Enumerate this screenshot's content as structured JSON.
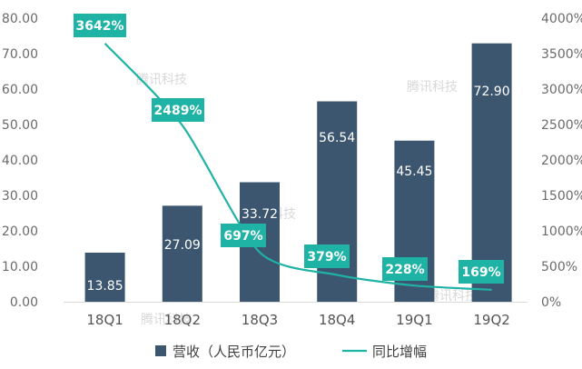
{
  "chart_data": {
    "type": "bar",
    "categories": [
      "18Q1",
      "18Q2",
      "18Q3",
      "18Q4",
      "19Q1",
      "19Q2"
    ],
    "series": [
      {
        "name": "营收（人民币亿元）",
        "type": "bar",
        "axis": "left",
        "values": [
          13.85,
          27.09,
          33.72,
          56.54,
          45.45,
          72.9
        ],
        "labels": [
          "13.85",
          "27.09",
          "33.72",
          "56.54",
          "45.45",
          "72.90"
        ],
        "color": "#3d5670"
      },
      {
        "name": "同比增幅",
        "type": "line",
        "axis": "right",
        "values": [
          3642,
          2489,
          697,
          379,
          228,
          169
        ],
        "labels": [
          "3642%",
          "2489%",
          "697%",
          "379%",
          "228%",
          "169%"
        ],
        "color": "#1fb3a5"
      }
    ],
    "y_left": {
      "ylim": [
        0,
        80
      ],
      "ticks": [
        "0.00",
        "10.00",
        "20.00",
        "30.00",
        "40.00",
        "50.00",
        "60.00",
        "70.00",
        "80.00"
      ]
    },
    "y_right": {
      "ylim": [
        0,
        4000
      ],
      "ticks": [
        "0%",
        "500%",
        "1000%",
        "1500%",
        "2000%",
        "2500%",
        "3000%",
        "3500%",
        "4000%"
      ]
    },
    "legend_position": "bottom",
    "grid": false,
    "watermark": "腾讯科技"
  }
}
